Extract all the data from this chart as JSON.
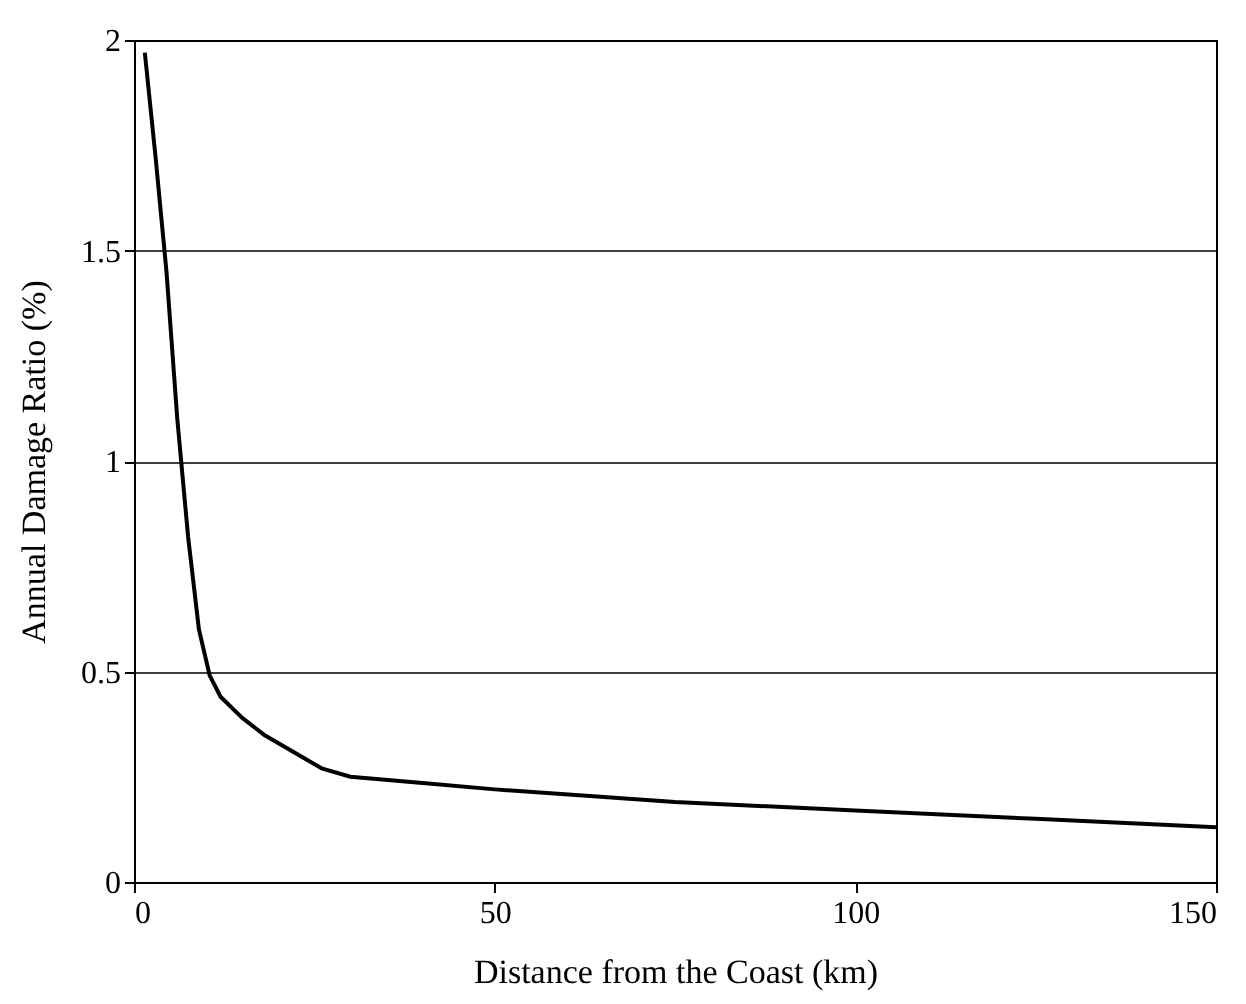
{
  "chart_data": {
    "type": "line",
    "xlabel": "Distance from the Coast (km)",
    "ylabel": "Annual Damage Ratio (%)",
    "x": [
      1.5,
      3,
      4.5,
      6,
      7.5,
      9,
      10.5,
      12,
      15,
      18,
      22,
      26,
      30,
      40,
      50,
      75,
      100,
      125,
      150
    ],
    "series": [
      {
        "color": "#000000",
        "values": [
          1.97,
          1.72,
          1.45,
          1.1,
          0.82,
          0.6,
          0.49,
          0.44,
          0.39,
          0.35,
          0.31,
          0.27,
          0.25,
          0.235,
          0.22,
          0.19,
          0.17,
          0.15,
          0.13
        ]
      }
    ],
    "xlim": [
      0,
      150
    ],
    "xticks": [
      0,
      50,
      100,
      150
    ],
    "ylim": [
      0,
      2
    ],
    "yticks": [
      0,
      0.5,
      1,
      1.5,
      2
    ],
    "grid": "y",
    "marker": "none",
    "line_style": "solid"
  }
}
